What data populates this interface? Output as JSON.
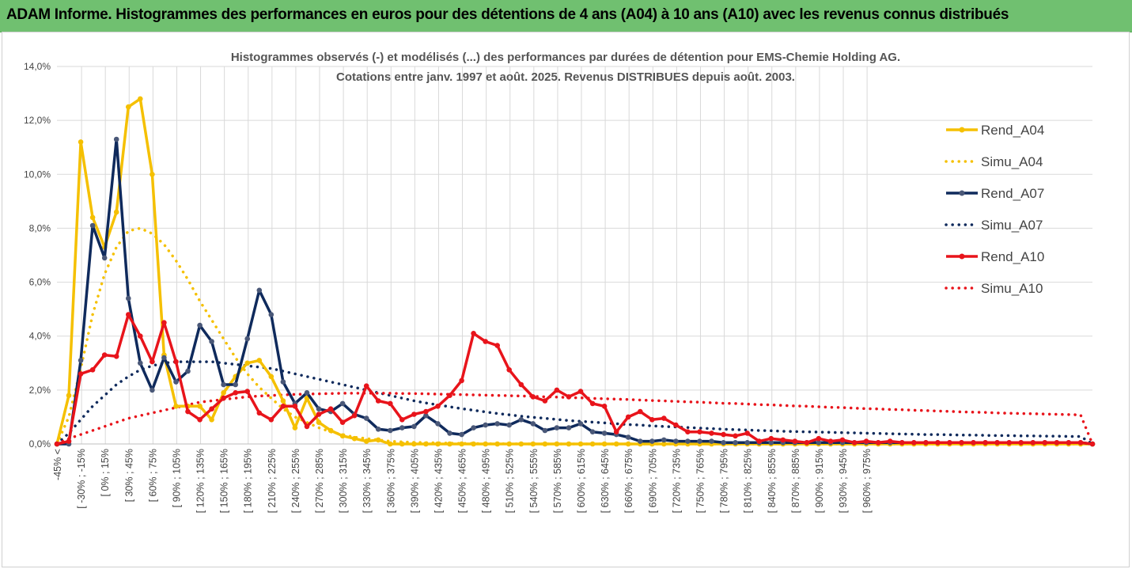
{
  "header": {
    "title": "ADAM Informe. Histogrammes des performances en euros pour des détentions de 4 ans (A04) à 10 ans (A10) avec les revenus connus distribués"
  },
  "chart_data": {
    "type": "line",
    "title_lines": [
      "Histogrammes observés (-)  et modélisés (...) des performances par durées de détention pour EMS-Chemie Holding AG.",
      "Cotations entre janv. 1997 et août. 2025. Revenus DISTRIBUES depuis août. 2003."
    ],
    "ylim": [
      0,
      14
    ],
    "y_ticks": [
      0,
      2,
      4,
      6,
      8,
      10,
      12,
      14
    ],
    "y_tick_labels": [
      "0,0%",
      "2,0%",
      "4,0%",
      "6,0%",
      "8,0%",
      "10,0%",
      "12,0%",
      "14,0%"
    ],
    "grid": true,
    "legend_position": "right",
    "n_points": 88,
    "x_labels": [
      "-45% <",
      "[ -30% ; -15%",
      "[ 0% ; 15%",
      "[ 30% ; 45%",
      "[ 60% ; 75%",
      "[ 90% ; 105%",
      "[ 120% ; 135%",
      "[ 150% ; 165%",
      "[ 180% ; 195%",
      "[ 210% ; 225%",
      "[ 240% ; 255%",
      "[ 270% ; 285%",
      "[ 300% ; 315%",
      "[ 330% ; 345%",
      "[ 360% ; 375%",
      "[ 390% ; 405%",
      "[ 420% ; 435%",
      "[ 450% ; 465%",
      "[ 480% ; 495%",
      "[ 510% ; 525%",
      "[ 540% ; 555%",
      "[ 570% ; 585%",
      "[ 600% ; 615%",
      "[ 630% ; 645%",
      "[ 660% ; 675%",
      "[ 690% ; 705%",
      "[ 720% ; 735%",
      "[ 750% ; 765%",
      "[ 780% ; 795%",
      "[ 810% ; 825%",
      "[ 840% ; 855%",
      "[ 870% ; 885%",
      "[ 900% ; 915%",
      "[ 930% ; 945%",
      "[ 960% ; 975%"
    ],
    "series": [
      {
        "name": "Rend_A04",
        "style": "solid",
        "color": "#f5c000",
        "values": [
          0.0,
          1.8,
          11.2,
          8.4,
          7.3,
          8.6,
          12.5,
          12.8,
          10.0,
          3.3,
          1.4,
          1.4,
          1.4,
          0.9,
          1.9,
          2.5,
          3.0,
          3.1,
          2.5,
          1.6,
          0.6,
          1.7,
          0.8,
          0.5,
          0.3,
          0.2,
          0.1,
          0.15,
          0.0,
          0,
          0,
          0,
          0,
          0,
          0,
          0,
          0,
          0,
          0,
          0,
          0,
          0,
          0,
          0,
          0,
          0,
          0,
          0,
          0,
          0,
          0,
          0,
          0,
          0,
          0,
          0,
          0,
          0,
          0,
          0,
          0,
          0,
          0,
          0,
          0,
          0,
          0,
          0,
          0,
          0,
          0,
          0,
          0,
          0,
          0,
          0,
          0,
          0,
          0,
          0,
          0,
          0,
          0,
          0,
          0,
          0,
          0,
          0
        ]
      },
      {
        "name": "Simu_A04",
        "style": "dotted",
        "color": "#f5c000",
        "values": [
          0.0,
          1.0,
          2.8,
          4.8,
          6.3,
          7.3,
          7.9,
          8.0,
          7.8,
          7.4,
          6.8,
          6.1,
          5.3,
          4.6,
          3.9,
          3.2,
          2.6,
          2.1,
          1.7,
          1.3,
          1.0,
          0.8,
          0.6,
          0.45,
          0.35,
          0.25,
          0.2,
          0.15,
          0.1,
          0.08,
          0.06,
          0.05,
          0.04,
          0.03,
          0.02,
          0.02,
          0.01,
          0.01,
          0.01,
          0,
          0,
          0,
          0,
          0,
          0,
          0,
          0,
          0,
          0,
          0,
          0,
          0,
          0,
          0,
          0,
          0,
          0,
          0,
          0,
          0,
          0,
          0,
          0,
          0,
          0,
          0,
          0,
          0,
          0,
          0,
          0,
          0,
          0,
          0,
          0,
          0,
          0,
          0,
          0,
          0,
          0,
          0,
          0,
          0,
          0,
          0,
          0,
          0
        ]
      },
      {
        "name": "Rend_A07",
        "style": "solid",
        "color": "#0f2a5c",
        "values": [
          0.0,
          0.0,
          3.1,
          8.1,
          6.9,
          11.3,
          5.4,
          3.0,
          2.0,
          3.2,
          2.3,
          2.7,
          4.4,
          3.8,
          2.2,
          2.2,
          3.9,
          5.7,
          4.8,
          2.3,
          1.5,
          1.9,
          1.3,
          1.2,
          1.5,
          1.1,
          0.95,
          0.55,
          0.5,
          0.6,
          0.65,
          1.05,
          0.75,
          0.4,
          0.35,
          0.6,
          0.7,
          0.75,
          0.7,
          0.9,
          0.75,
          0.5,
          0.6,
          0.6,
          0.75,
          0.45,
          0.4,
          0.35,
          0.25,
          0.1,
          0.1,
          0.15,
          0.1,
          0.1,
          0.1,
          0.1,
          0.05,
          0.05,
          0.05,
          0.05,
          0.05,
          0.05,
          0.05,
          0.05,
          0.05,
          0.05,
          0.05,
          0.05,
          0.05,
          0.05,
          0.05,
          0.05,
          0.05,
          0.05,
          0.05,
          0.05,
          0.05,
          0.05,
          0.05,
          0.05,
          0.05,
          0.05,
          0.05,
          0.05,
          0.05,
          0.05,
          0.05,
          0.0
        ]
      },
      {
        "name": "Simu_A07",
        "style": "dotted",
        "color": "#0f2a5c",
        "values": [
          0.0,
          0.4,
          0.9,
          1.4,
          1.8,
          2.2,
          2.5,
          2.75,
          2.9,
          3.0,
          3.05,
          3.05,
          3.05,
          3.05,
          3.0,
          2.95,
          2.9,
          2.85,
          2.8,
          2.7,
          2.6,
          2.5,
          2.4,
          2.3,
          2.2,
          2.1,
          2.0,
          1.9,
          1.8,
          1.7,
          1.6,
          1.52,
          1.45,
          1.38,
          1.31,
          1.25,
          1.19,
          1.13,
          1.08,
          1.03,
          0.99,
          0.95,
          0.91,
          0.87,
          0.84,
          0.81,
          0.78,
          0.75,
          0.72,
          0.7,
          0.67,
          0.65,
          0.63,
          0.61,
          0.59,
          0.57,
          0.55,
          0.53,
          0.52,
          0.5,
          0.49,
          0.47,
          0.46,
          0.45,
          0.44,
          0.43,
          0.42,
          0.41,
          0.4,
          0.39,
          0.38,
          0.37,
          0.36,
          0.35,
          0.35,
          0.34,
          0.33,
          0.33,
          0.32,
          0.31,
          0.31,
          0.3,
          0.3,
          0.29,
          0.29,
          0.28,
          0.28,
          0.0
        ]
      },
      {
        "name": "Rend_A10",
        "style": "solid",
        "color": "#e8141b",
        "values": [
          0.0,
          0.1,
          2.6,
          2.75,
          3.3,
          3.25,
          4.8,
          4.0,
          3.05,
          4.5,
          3.05,
          1.2,
          0.9,
          1.3,
          1.7,
          1.9,
          1.95,
          1.15,
          0.9,
          1.4,
          1.4,
          0.65,
          1.1,
          1.3,
          0.8,
          1.05,
          2.15,
          1.6,
          1.5,
          0.9,
          1.1,
          1.2,
          1.4,
          1.8,
          2.35,
          4.1,
          3.8,
          3.65,
          2.75,
          2.2,
          1.75,
          1.6,
          2.0,
          1.75,
          1.95,
          1.5,
          1.4,
          0.45,
          1.0,
          1.2,
          0.9,
          0.95,
          0.7,
          0.45,
          0.45,
          0.4,
          0.35,
          0.3,
          0.4,
          0.1,
          0.2,
          0.15,
          0.1,
          0.05,
          0.2,
          0.1,
          0.15,
          0.05,
          0.1,
          0.05,
          0.1,
          0.05,
          0.05,
          0.05,
          0.05,
          0.05,
          0.05,
          0.05,
          0.05,
          0.05,
          0.05,
          0.05,
          0.05,
          0.05,
          0.05,
          0.05,
          0.05,
          0.0
        ]
      },
      {
        "name": "Simu_A10",
        "style": "dotted",
        "color": "#e8141b",
        "values": [
          0.0,
          0.2,
          0.35,
          0.5,
          0.65,
          0.8,
          0.95,
          1.05,
          1.15,
          1.25,
          1.35,
          1.45,
          1.55,
          1.6,
          1.65,
          1.7,
          1.75,
          1.78,
          1.8,
          1.82,
          1.84,
          1.85,
          1.86,
          1.87,
          1.88,
          1.88,
          1.88,
          1.88,
          1.88,
          1.87,
          1.87,
          1.86,
          1.85,
          1.84,
          1.83,
          1.82,
          1.81,
          1.8,
          1.79,
          1.78,
          1.77,
          1.75,
          1.74,
          1.72,
          1.71,
          1.69,
          1.68,
          1.66,
          1.65,
          1.63,
          1.61,
          1.6,
          1.58,
          1.56,
          1.55,
          1.53,
          1.51,
          1.5,
          1.48,
          1.46,
          1.45,
          1.43,
          1.41,
          1.4,
          1.38,
          1.36,
          1.35,
          1.33,
          1.31,
          1.3,
          1.28,
          1.27,
          1.25,
          1.24,
          1.22,
          1.21,
          1.19,
          1.18,
          1.17,
          1.15,
          1.14,
          1.13,
          1.12,
          1.11,
          1.1,
          1.09,
          1.08,
          0.0
        ]
      }
    ]
  }
}
